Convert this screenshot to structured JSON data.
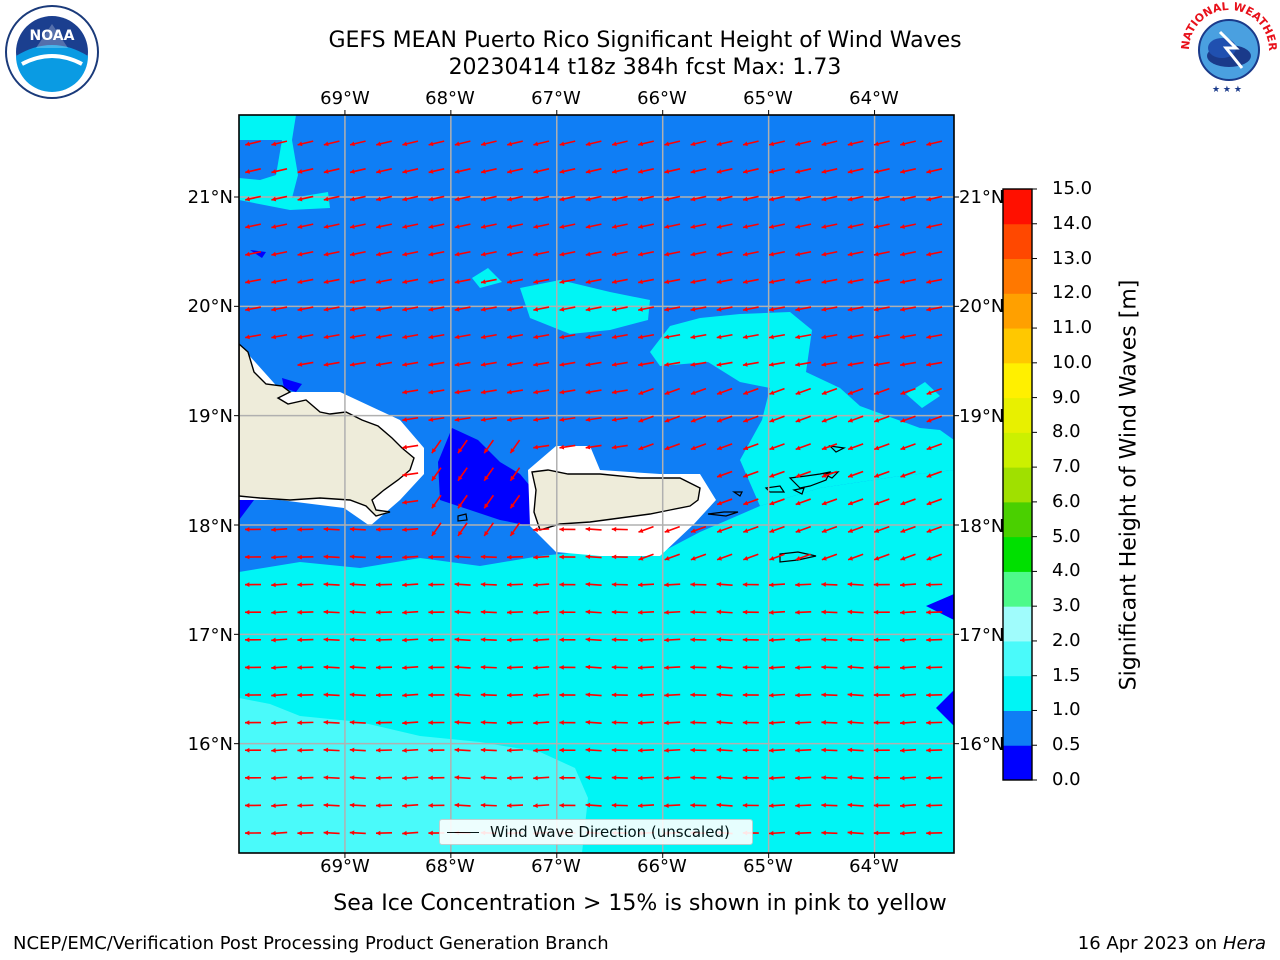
{
  "title": {
    "line1": "GEFS MEAN Puerto Rico Significant Height of Wind Waves",
    "line2": "20230414 t18z 384h fcst   Max: 1.73"
  },
  "map": {
    "lon_range": [
      -70.0,
      -63.25
    ],
    "lat_range": [
      15.0,
      21.75
    ],
    "lon_ticks": [
      "69°W",
      "68°W",
      "67°W",
      "66°W",
      "65°W",
      "64°W"
    ],
    "lat_ticks": [
      "21°N",
      "20°N",
      "19°N",
      "18°N",
      "17°N",
      "16°N"
    ],
    "ocean_color": "#0f7ef5",
    "land_color": "#eeecda",
    "arrow_color": "#ff0000",
    "grid": true
  },
  "legend": {
    "label": "Wind Wave Direction (unscaled)"
  },
  "colorbar": {
    "title": "Significant Height of Wind Waves [m]",
    "labels": [
      "15.0",
      "14.0",
      "13.0",
      "12.0",
      "11.0",
      "10.0",
      "9.0",
      "8.0",
      "7.0",
      "6.0",
      "5.0",
      "4.0",
      "3.0",
      "2.0",
      "1.5",
      "1.0",
      "0.5",
      "0.0"
    ],
    "levels": [
      0.0,
      0.5,
      1.0,
      1.5,
      2.0,
      3.0,
      4.0,
      5.0,
      6.0,
      7.0,
      8.0,
      9.0,
      10.0,
      11.0,
      12.0,
      13.0,
      14.0,
      15.0
    ],
    "colors": [
      "#0000ff",
      "#0f7ef5",
      "#00f5f5",
      "#4afafa",
      "#a0fcfc",
      "#4dfa8a",
      "#00e000",
      "#4ad000",
      "#a0e000",
      "#ccf000",
      "#e8f000",
      "#fff000",
      "#ffc800",
      "#ffa000",
      "#ff7800",
      "#ff4800",
      "#ff1000"
    ]
  },
  "subtitle": "Sea Ice Concentration > 15% is shown in pink to yellow",
  "footer": {
    "left": "NCEP/EMC/Verification Post Processing Product Generation Branch",
    "right_prefix": "16 Apr 2023 on ",
    "right_italic": "Hera"
  },
  "logos": {
    "noaa_text": "NOAA",
    "noaa_ring": "NATIONAL OCEANIC AND ATMOSPHERIC ADMINISTRATION · U.S. DEPARTMENT OF COMMERCE",
    "nws_ring": "NATIONAL WEATHER SERVICE"
  }
}
